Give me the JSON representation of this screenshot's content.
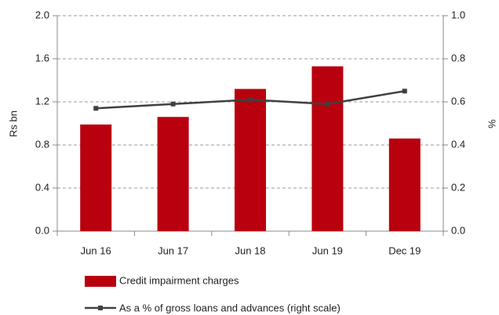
{
  "chart_data": {
    "type": "bar",
    "categories": [
      "Jun 16",
      "Jun 17",
      "Jun 18",
      "Jun 19",
      "Dec 19"
    ],
    "series": [
      {
        "name": "Credit impairment charges",
        "color": "#b8000e",
        "values": [
          0.99,
          1.06,
          1.32,
          1.53,
          0.86
        ]
      },
      {
        "name": "As a % of gross loans and advances (right scale)",
        "type": "line",
        "axis": "y2",
        "color": "#404040",
        "values": [
          0.57,
          0.59,
          0.61,
          0.59,
          0.65
        ]
      }
    ],
    "ylabel": "Rs bn",
    "y2label": "%",
    "ylim": [
      0,
      2.0
    ],
    "yticks": [
      {
        "value": 0,
        "label": "0.0"
      },
      0.4,
      0.8,
      1.2,
      1.6,
      {
        "value": 2.0,
        "label": "2.0"
      }
    ],
    "y2lim": [
      0,
      1.0
    ],
    "y2ticks": [
      {
        "value": 0,
        "label": "0.0"
      },
      0.2,
      0.4,
      0.6,
      0.8,
      {
        "value": 1.0,
        "label": "1.0"
      }
    ],
    "grid": true
  }
}
